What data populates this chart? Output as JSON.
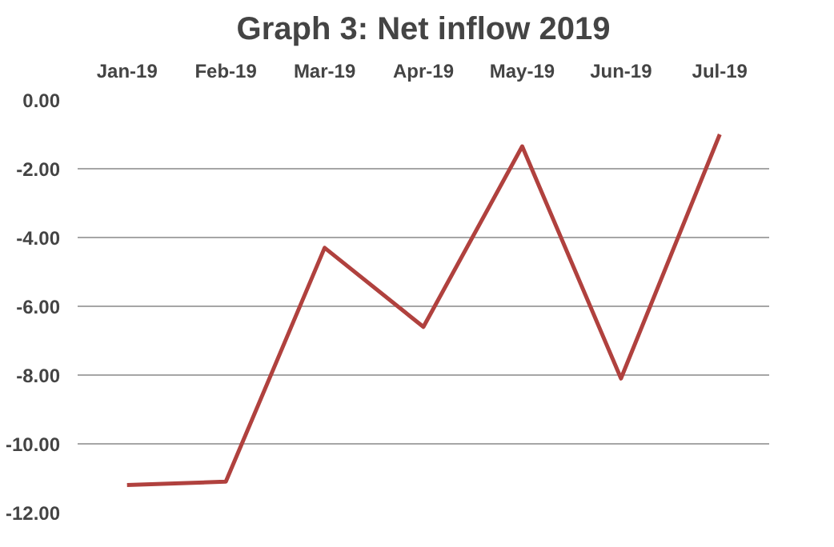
{
  "chart_data": {
    "type": "line",
    "title": "Graph 3: Net inflow 2019",
    "categories": [
      "Jan-19",
      "Feb-19",
      "Mar-19",
      "Apr-19",
      "May-19",
      "Jun-19",
      "Jul-19"
    ],
    "series": [
      {
        "color": "#b0413e",
        "values": [
          -11.2,
          -11.1,
          -4.3,
          -6.6,
          -1.35,
          -8.1,
          -1.0
        ]
      }
    ],
    "ylim": [
      -12,
      0
    ],
    "yticks": [
      {
        "value": -12,
        "label": "-12.00"
      },
      {
        "value": -10,
        "label": "-10.00"
      },
      {
        "value": -8,
        "label": "-8.00"
      },
      {
        "value": -6,
        "label": "-6.00"
      },
      {
        "value": -4,
        "label": "-4.00"
      },
      {
        "value": -2,
        "label": "-2.00"
      },
      {
        "value": 0,
        "label": "0.00"
      }
    ],
    "grid": "y",
    "marker": "none",
    "line_style": "solid"
  }
}
